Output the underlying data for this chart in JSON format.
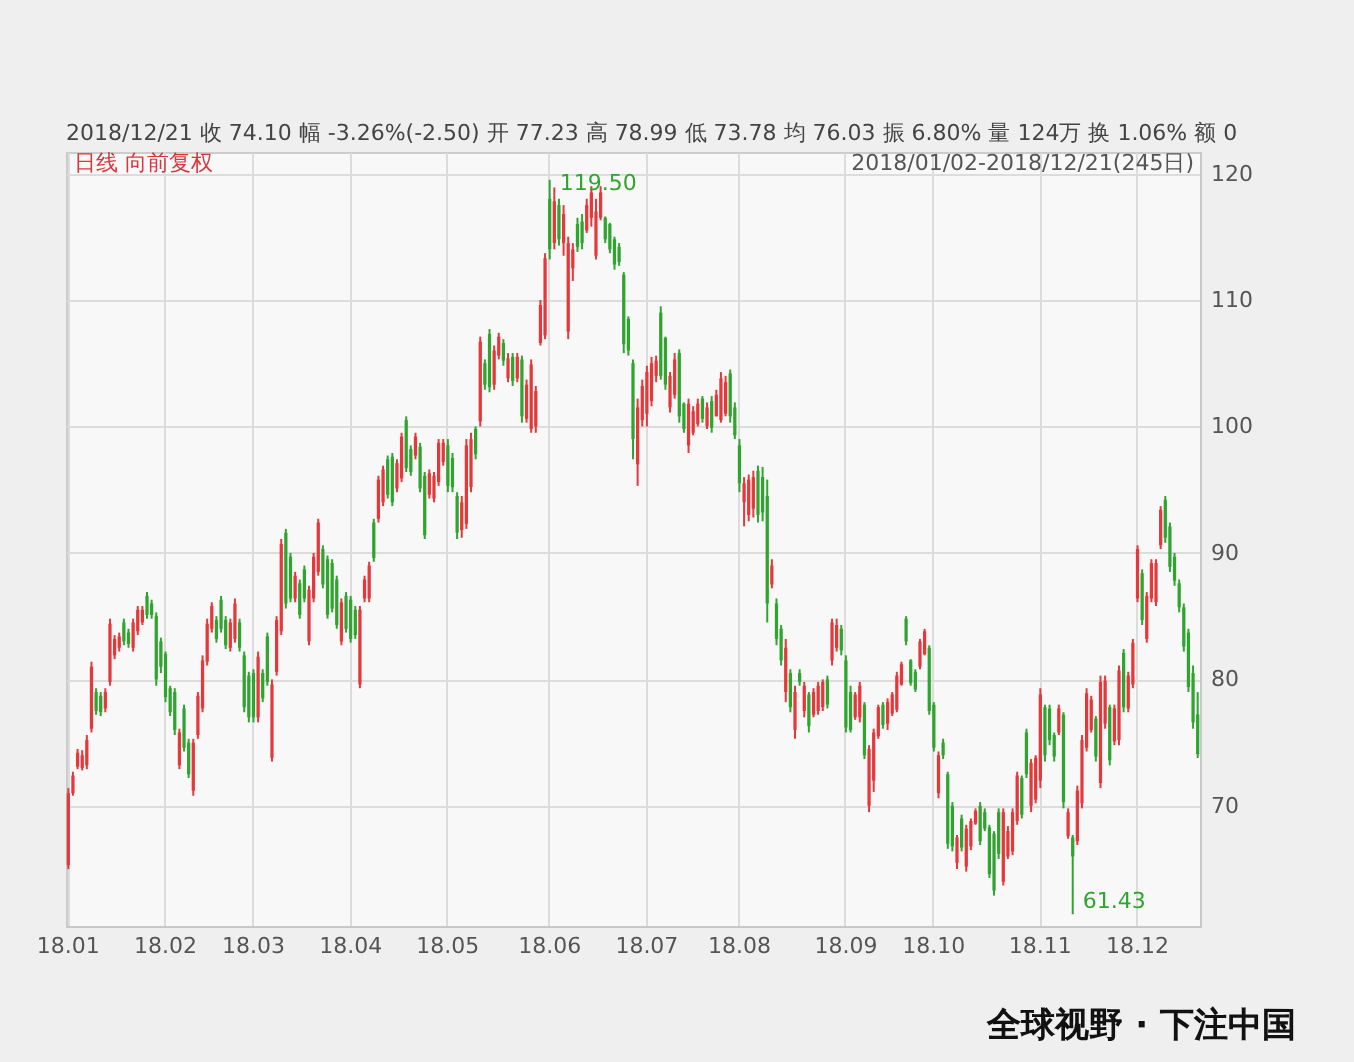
{
  "chart_data": {
    "type": "candlestick",
    "subtitle": "2018/12/21 收 74.10 幅 -3.26%(-2.50) 开 77.23 高 78.99 低 73.78 均 76.03 振 6.80% 量 124万 换 1.06% 额 0",
    "annotations": [
      "日线 向前复权",
      "2018/01/02-2018/12/21(245日)",
      "全球视野 · 下注中国",
      "61.43",
      {
        "text": "119.50",
        "y": 119.5
      }
    ],
    "categories": [
      "18.01",
      null,
      null,
      null,
      null,
      null,
      null,
      null,
      null,
      null,
      null,
      null,
      null,
      null,
      null,
      null,
      null,
      null,
      null,
      null,
      null,
      "18.02",
      null,
      null,
      null,
      null,
      null,
      null,
      null,
      null,
      null,
      null,
      null,
      null,
      null,
      null,
      null,
      null,
      null,
      null,
      "18.03",
      null,
      null,
      null,
      null,
      null,
      null,
      null,
      null,
      null,
      null,
      null,
      null,
      null,
      null,
      null,
      null,
      null,
      null,
      null,
      null,
      "18.04",
      null,
      null,
      null,
      null,
      null,
      null,
      null,
      null,
      null,
      null,
      null,
      null,
      null,
      null,
      null,
      null,
      null,
      null,
      null,
      null,
      "18.05",
      null,
      null,
      null,
      null,
      null,
      null,
      null,
      null,
      null,
      null,
      null,
      null,
      null,
      null,
      null,
      null,
      null,
      null,
      null,
      null,
      null,
      "18.06",
      null,
      null,
      null,
      null,
      null,
      null,
      null,
      null,
      null,
      null,
      null,
      null,
      null,
      null,
      null,
      null,
      null,
      null,
      null,
      null,
      "18.07",
      null,
      null,
      null,
      null,
      null,
      null,
      null,
      null,
      null,
      null,
      null,
      null,
      null,
      null,
      null,
      null,
      null,
      null,
      null,
      "18.08",
      null,
      null,
      null,
      null,
      null,
      null,
      null,
      null,
      null,
      null,
      null,
      null,
      null,
      null,
      null,
      null,
      null,
      null,
      null,
      null,
      null,
      null,
      "18.09",
      null,
      null,
      null,
      null,
      null,
      null,
      null,
      null,
      null,
      null,
      null,
      null,
      null,
      null,
      null,
      null,
      null,
      null,
      "18.10",
      null,
      null,
      null,
      null,
      null,
      null,
      null,
      null,
      null,
      null,
      null,
      null,
      null,
      null,
      null,
      null,
      null,
      null,
      null,
      null,
      null,
      null,
      "18.11",
      null,
      null,
      null,
      null,
      null,
      null,
      null,
      null,
      null,
      null,
      null,
      null,
      null,
      null,
      null,
      null,
      null,
      null,
      null,
      null,
      "18.12",
      null,
      null,
      null,
      null,
      null,
      null,
      null,
      null,
      null,
      null,
      null,
      null,
      null
    ],
    "ohlc": [
      [
        65.3,
        71.4,
        65.0,
        71.0
      ],
      [
        71.0,
        72.7,
        70.8,
        72.4
      ],
      [
        73.1,
        74.5,
        72.9,
        74.2
      ],
      [
        73.0,
        74.4,
        72.8,
        74.0
      ],
      [
        73.2,
        75.6,
        72.9,
        75.2
      ],
      [
        76.1,
        81.4,
        75.8,
        81.0
      ],
      [
        79.0,
        79.3,
        77.2,
        77.5
      ],
      [
        78.7,
        79.0,
        77.1,
        77.4
      ],
      [
        77.7,
        79.3,
        77.4,
        79.0
      ],
      [
        79.8,
        84.8,
        79.5,
        84.4
      ],
      [
        81.9,
        83.5,
        81.6,
        83.2
      ],
      [
        82.5,
        83.7,
        82.2,
        83.4
      ],
      [
        84.5,
        84.8,
        82.7,
        83.0
      ],
      [
        83.7,
        84.0,
        82.5,
        82.8
      ],
      [
        82.5,
        84.8,
        82.2,
        84.5
      ],
      [
        83.8,
        85.8,
        83.5,
        85.5
      ],
      [
        84.5,
        85.8,
        84.3,
        85.5
      ],
      [
        86.6,
        86.9,
        84.8,
        85.1
      ],
      [
        86.0,
        86.3,
        84.8,
        85.1
      ],
      [
        85.0,
        85.3,
        79.5,
        80.0
      ],
      [
        83.0,
        83.3,
        80.5,
        81.0
      ],
      [
        82.0,
        82.2,
        78.2,
        78.6
      ],
      [
        79.3,
        79.5,
        77.1,
        77.4
      ],
      [
        79.0,
        79.3,
        75.6,
        76.0
      ],
      [
        73.2,
        76.1,
        72.9,
        75.8
      ],
      [
        77.7,
        78.0,
        74.3,
        74.6
      ],
      [
        75.0,
        75.3,
        72.2,
        72.5
      ],
      [
        71.2,
        75.3,
        70.8,
        75.0
      ],
      [
        75.6,
        79.0,
        75.3,
        78.7
      ],
      [
        77.7,
        81.9,
        77.4,
        81.5
      ],
      [
        81.4,
        84.8,
        81.1,
        84.4
      ],
      [
        84.0,
        86.1,
        83.7,
        85.8
      ],
      [
        84.7,
        85.0,
        82.9,
        83.2
      ],
      [
        86.3,
        86.6,
        83.7,
        84.0
      ],
      [
        84.7,
        85.0,
        82.4,
        82.7
      ],
      [
        82.5,
        84.8,
        82.2,
        84.5
      ],
      [
        83.2,
        86.4,
        82.9,
        86.0
      ],
      [
        84.5,
        84.8,
        82.2,
        82.5
      ],
      [
        81.9,
        82.2,
        77.4,
        77.8
      ],
      [
        80.3,
        80.6,
        76.6,
        77.0
      ],
      [
        80.5,
        80.8,
        76.6,
        77.0
      ],
      [
        77.0,
        82.2,
        76.6,
        81.8
      ],
      [
        80.5,
        80.8,
        78.2,
        78.5
      ],
      [
        83.4,
        83.7,
        79.5,
        79.8
      ],
      [
        73.8,
        80.0,
        73.5,
        79.6
      ],
      [
        80.6,
        85.0,
        80.3,
        84.7
      ],
      [
        83.8,
        91.1,
        83.5,
        90.7
      ],
      [
        91.6,
        91.9,
        85.6,
        86.0
      ],
      [
        89.7,
        90.0,
        86.1,
        86.4
      ],
      [
        86.4,
        88.5,
        86.1,
        88.2
      ],
      [
        87.6,
        87.9,
        84.8,
        85.1
      ],
      [
        88.7,
        89.0,
        86.1,
        86.4
      ],
      [
        83.0,
        87.4,
        82.7,
        87.1
      ],
      [
        86.4,
        90.0,
        86.1,
        89.7
      ],
      [
        88.5,
        92.7,
        88.2,
        92.4
      ],
      [
        90.3,
        90.6,
        87.2,
        87.5
      ],
      [
        89.5,
        89.8,
        84.8,
        85.1
      ],
      [
        89.2,
        89.5,
        85.3,
        85.6
      ],
      [
        87.9,
        88.2,
        84.0,
        84.3
      ],
      [
        83.0,
        86.4,
        82.7,
        86.1
      ],
      [
        86.6,
        86.9,
        83.7,
        84.0
      ],
      [
        86.3,
        86.6,
        82.9,
        83.2
      ],
      [
        85.5,
        85.8,
        83.2,
        83.5
      ],
      [
        79.6,
        85.8,
        79.3,
        85.5
      ],
      [
        86.4,
        88.2,
        86.1,
        87.9
      ],
      [
        86.4,
        89.3,
        86.1,
        89.0
      ],
      [
        92.4,
        92.7,
        89.3,
        89.6
      ],
      [
        92.7,
        96.1,
        92.4,
        95.8
      ],
      [
        94.0,
        96.9,
        93.7,
        96.6
      ],
      [
        97.4,
        97.7,
        94.3,
        94.6
      ],
      [
        97.6,
        97.9,
        93.7,
        94.0
      ],
      [
        95.1,
        97.4,
        94.8,
        97.1
      ],
      [
        95.9,
        99.5,
        95.6,
        99.2
      ],
      [
        100.5,
        100.8,
        96.4,
        96.7
      ],
      [
        98.2,
        98.5,
        96.1,
        96.4
      ],
      [
        97.7,
        99.5,
        97.4,
        99.2
      ],
      [
        98.4,
        98.7,
        94.8,
        95.1
      ],
      [
        96.1,
        96.4,
        91.1,
        91.4
      ],
      [
        94.6,
        96.6,
        94.3,
        96.3
      ],
      [
        94.3,
        96.4,
        94.0,
        96.1
      ],
      [
        95.6,
        99.0,
        95.3,
        98.7
      ],
      [
        97.2,
        99.0,
        96.9,
        98.7
      ],
      [
        98.5,
        99.0,
        94.8,
        95.3
      ],
      [
        97.5,
        97.9,
        94.8,
        95.2
      ],
      [
        94.5,
        94.8,
        91.1,
        91.6
      ],
      [
        91.8,
        94.5,
        91.2,
        94.0
      ],
      [
        92.3,
        99.0,
        91.9,
        98.5
      ],
      [
        95.2,
        99.5,
        94.8,
        99.0
      ],
      [
        99.8,
        100.0,
        97.4,
        97.8
      ],
      [
        100.4,
        107.1,
        100.0,
        106.7
      ],
      [
        105.0,
        105.3,
        102.9,
        103.3
      ],
      [
        107.3,
        107.7,
        102.7,
        103.1
      ],
      [
        103.3,
        106.4,
        102.9,
        106.0
      ],
      [
        105.6,
        107.4,
        105.3,
        107.1
      ],
      [
        106.6,
        106.9,
        104.8,
        105.2
      ],
      [
        103.8,
        105.8,
        103.5,
        105.4
      ],
      [
        105.5,
        105.8,
        103.2,
        103.6
      ],
      [
        103.8,
        105.8,
        103.5,
        105.5
      ],
      [
        105.3,
        105.6,
        100.3,
        100.8
      ],
      [
        100.6,
        103.7,
        100.3,
        103.3
      ],
      [
        99.8,
        105.3,
        99.5,
        104.9
      ],
      [
        100.0,
        103.2,
        99.5,
        102.8
      ],
      [
        106.6,
        110.0,
        106.4,
        109.6
      ],
      [
        107.2,
        113.7,
        106.9,
        113.3
      ],
      [
        118.0,
        119.5,
        113.2,
        114.0
      ],
      [
        114.5,
        118.9,
        114.0,
        117.8
      ],
      [
        117.5,
        118.0,
        114.3,
        114.8
      ],
      [
        114.5,
        117.5,
        113.5,
        116.8
      ],
      [
        107.5,
        115.0,
        106.9,
        114.5
      ],
      [
        112.5,
        114.5,
        111.5,
        114.0
      ],
      [
        116.0,
        116.5,
        113.8,
        114.2
      ],
      [
        116.2,
        116.8,
        114.0,
        114.5
      ],
      [
        115.5,
        118.0,
        115.3,
        117.5
      ],
      [
        116.5,
        119.0,
        115.8,
        118.5
      ],
      [
        113.5,
        118.0,
        113.2,
        117.0
      ],
      [
        116.5,
        119.0,
        116.3,
        118.5
      ],
      [
        116.5,
        116.6,
        114.5,
        114.8
      ],
      [
        116.0,
        116.1,
        113.7,
        114.0
      ],
      [
        114.8,
        115.0,
        112.4,
        112.8
      ],
      [
        114.2,
        114.5,
        112.7,
        113.0
      ],
      [
        112.0,
        112.2,
        105.8,
        106.5
      ],
      [
        108.5,
        108.7,
        105.6,
        106.0
      ],
      [
        105.0,
        105.3,
        97.4,
        99.0
      ],
      [
        97.0,
        102.2,
        95.3,
        101.5
      ],
      [
        100.5,
        103.7,
        100.0,
        103.2
      ],
      [
        101.0,
        104.8,
        100.0,
        104.3
      ],
      [
        102.0,
        105.5,
        101.6,
        105.0
      ],
      [
        104.0,
        105.6,
        103.5,
        105.2
      ],
      [
        109.0,
        109.5,
        103.7,
        104.0
      ],
      [
        107.0,
        107.1,
        102.9,
        103.3
      ],
      [
        101.5,
        104.3,
        101.1,
        104.0
      ],
      [
        102.5,
        105.8,
        102.2,
        105.3
      ],
      [
        105.8,
        106.1,
        100.3,
        100.8
      ],
      [
        101.8,
        101.9,
        99.5,
        99.8
      ],
      [
        98.5,
        102.2,
        97.9,
        101.8
      ],
      [
        99.5,
        101.6,
        99.3,
        101.2
      ],
      [
        100.2,
        102.2,
        100.0,
        101.8
      ],
      [
        102.2,
        102.4,
        100.3,
        100.6
      ],
      [
        100.0,
        101.9,
        99.8,
        101.5
      ],
      [
        102.0,
        102.4,
        99.5,
        99.9
      ],
      [
        100.8,
        102.9,
        100.8,
        102.5
      ],
      [
        100.5,
        104.3,
        100.3,
        103.8
      ],
      [
        101.0,
        104.0,
        100.8,
        103.5
      ],
      [
        104.2,
        104.5,
        100.3,
        100.8
      ],
      [
        101.5,
        101.9,
        99.0,
        99.3
      ],
      [
        98.5,
        99.0,
        94.8,
        95.5
      ],
      [
        94.0,
        96.0,
        92.1,
        95.5
      ],
      [
        93.0,
        96.2,
        92.5,
        95.8
      ],
      [
        93.5,
        96.5,
        92.8,
        96.0
      ],
      [
        96.5,
        96.9,
        92.4,
        93.0
      ],
      [
        96.0,
        96.8,
        92.5,
        93.2
      ],
      [
        94.5,
        95.8,
        84.5,
        86.0
      ],
      [
        87.5,
        89.5,
        87.2,
        89.0
      ],
      [
        86.0,
        86.4,
        82.7,
        83.2
      ],
      [
        84.0,
        84.3,
        81.1,
        81.5
      ],
      [
        79.0,
        83.2,
        78.2,
        82.5
      ],
      [
        80.5,
        80.8,
        77.4,
        77.8
      ],
      [
        76.0,
        79.5,
        75.3,
        79.0
      ],
      [
        80.5,
        80.8,
        79.5,
        79.8
      ],
      [
        77.5,
        79.8,
        77.0,
        79.5
      ],
      [
        78.8,
        79.0,
        75.8,
        76.3
      ],
      [
        77.2,
        79.3,
        77.0,
        79.0
      ],
      [
        77.5,
        79.8,
        77.2,
        79.5
      ],
      [
        77.8,
        80.0,
        77.5,
        79.8
      ],
      [
        80.0,
        80.3,
        77.7,
        78.0
      ],
      [
        81.5,
        84.8,
        81.1,
        84.5
      ],
      [
        82.5,
        84.8,
        82.2,
        84.3
      ],
      [
        84.0,
        84.3,
        81.9,
        82.3
      ],
      [
        81.5,
        81.9,
        75.8,
        76.2
      ],
      [
        79.0,
        79.5,
        75.8,
        76.0
      ],
      [
        77.0,
        79.0,
        76.8,
        78.8
      ],
      [
        77.0,
        79.8,
        76.6,
        79.5
      ],
      [
        78.0,
        78.2,
        73.7,
        74.0
      ],
      [
        70.0,
        74.8,
        69.5,
        74.5
      ],
      [
        72.0,
        76.1,
        71.1,
        75.8
      ],
      [
        75.5,
        78.0,
        75.3,
        77.8
      ],
      [
        78.0,
        78.2,
        76.1,
        76.4
      ],
      [
        76.5,
        78.5,
        76.0,
        78.2
      ],
      [
        77.3,
        79.0,
        77.1,
        78.8
      ],
      [
        77.6,
        80.6,
        77.4,
        80.3
      ],
      [
        79.6,
        81.4,
        79.5,
        81.2
      ],
      [
        84.8,
        85.0,
        82.7,
        83.0
      ],
      [
        81.5,
        81.6,
        79.5,
        79.7
      ],
      [
        80.6,
        80.8,
        79.0,
        79.2
      ],
      [
        81.0,
        83.2,
        80.8,
        83.0
      ],
      [
        82.0,
        84.0,
        81.9,
        83.8
      ],
      [
        82.5,
        82.7,
        77.2,
        77.5
      ],
      [
        78.0,
        78.2,
        74.3,
        74.6
      ],
      [
        71.0,
        74.3,
        70.6,
        74.0
      ],
      [
        75.0,
        75.3,
        73.7,
        74.0
      ],
      [
        72.5,
        72.7,
        66.6,
        67.0
      ],
      [
        70.0,
        70.3,
        66.4,
        66.8
      ],
      [
        65.5,
        67.7,
        65.0,
        67.5
      ],
      [
        69.0,
        69.3,
        66.4,
        66.7
      ],
      [
        65.2,
        68.5,
        64.8,
        68.2
      ],
      [
        66.8,
        69.0,
        66.5,
        68.8
      ],
      [
        68.6,
        69.8,
        68.5,
        69.6
      ],
      [
        70.0,
        70.3,
        66.9,
        67.2
      ],
      [
        69.5,
        69.8,
        68.0,
        68.2
      ],
      [
        68.3,
        68.5,
        64.3,
        64.6
      ],
      [
        67.8,
        68.0,
        62.9,
        63.3
      ],
      [
        69.5,
        69.8,
        65.8,
        66.2
      ],
      [
        64.0,
        69.8,
        63.7,
        69.5
      ],
      [
        66.0,
        68.4,
        65.8,
        68.0
      ],
      [
        66.4,
        69.8,
        66.1,
        69.5
      ],
      [
        68.8,
        72.7,
        68.5,
        72.4
      ],
      [
        72.2,
        72.4,
        69.0,
        69.3
      ],
      [
        75.8,
        76.1,
        72.2,
        72.5
      ],
      [
        70.0,
        73.7,
        69.5,
        73.4
      ],
      [
        70.5,
        74.0,
        70.2,
        73.8
      ],
      [
        72.0,
        79.3,
        71.4,
        78.8
      ],
      [
        77.8,
        78.0,
        73.5,
        74.0
      ],
      [
        77.7,
        78.0,
        74.8,
        75.2
      ],
      [
        75.6,
        75.8,
        73.5,
        73.9
      ],
      [
        75.8,
        78.0,
        75.6,
        77.7
      ],
      [
        77.2,
        77.4,
        69.8,
        70.3
      ],
      [
        67.6,
        69.8,
        67.4,
        69.5
      ],
      [
        67.5,
        67.7,
        61.43,
        66.0
      ],
      [
        67.2,
        71.6,
        66.9,
        71.2
      ],
      [
        70.2,
        75.6,
        69.8,
        75.2
      ],
      [
        74.6,
        79.3,
        74.3,
        78.9
      ],
      [
        76.0,
        78.7,
        75.8,
        78.4
      ],
      [
        76.9,
        77.1,
        73.5,
        73.9
      ],
      [
        71.8,
        80.3,
        71.4,
        79.8
      ],
      [
        76.5,
        80.3,
        76.1,
        79.9
      ],
      [
        77.8,
        78.0,
        73.2,
        73.6
      ],
      [
        75.1,
        78.0,
        74.8,
        77.7
      ],
      [
        75.2,
        81.1,
        74.8,
        80.7
      ],
      [
        82.1,
        82.4,
        77.4,
        77.8
      ],
      [
        77.7,
        80.6,
        77.4,
        80.3
      ],
      [
        79.6,
        83.2,
        79.3,
        82.9
      ],
      [
        86.4,
        90.6,
        86.1,
        90.3
      ],
      [
        88.4,
        88.7,
        84.3,
        84.7
      ],
      [
        83.2,
        86.9,
        82.9,
        86.6
      ],
      [
        86.4,
        89.5,
        86.1,
        89.2
      ],
      [
        86.1,
        89.5,
        85.8,
        89.2
      ],
      [
        90.6,
        93.7,
        90.3,
        93.4
      ],
      [
        94.2,
        94.5,
        90.8,
        91.2
      ],
      [
        92.1,
        92.4,
        88.5,
        88.9
      ],
      [
        89.7,
        90.0,
        87.4,
        87.8
      ],
      [
        87.6,
        87.9,
        85.3,
        85.7
      ],
      [
        85.7,
        86.0,
        82.2,
        82.6
      ],
      [
        83.7,
        84.0,
        79.0,
        79.4
      ],
      [
        80.5,
        81.1,
        76.1,
        76.6
      ],
      [
        77.23,
        78.99,
        73.78,
        74.1
      ]
    ],
    "colors": [
      "#e5383b",
      "#e5383b",
      "#e5383b",
      "#e5383b",
      "#e5383b",
      "#e5383b",
      "#2fa52f",
      "#2fa52f",
      "#e5383b",
      "#e5383b",
      "#e5383b",
      "#e5383b",
      "#2fa52f",
      "#2fa52f",
      "#e5383b",
      "#e5383b",
      "#e5383b",
      "#2fa52f",
      "#2fa52f",
      "#2fa52f",
      "#2fa52f",
      "#2fa52f",
      "#2fa52f",
      "#2fa52f",
      "#e5383b",
      "#2fa52f",
      "#2fa52f",
      "#e5383b",
      "#e5383b",
      "#e5383b",
      "#e5383b",
      "#e5383b",
      "#2fa52f",
      "#2fa52f",
      "#2fa52f",
      "#e5383b",
      "#e5383b",
      "#2fa52f",
      "#2fa52f",
      "#2fa52f",
      "#2fa52f",
      "#e5383b",
      "#2fa52f",
      "#2fa52f",
      "#e5383b",
      "#e5383b",
      "#e5383b",
      "#2fa52f",
      "#2fa52f",
      "#e5383b",
      "#2fa52f",
      "#2fa52f",
      "#e5383b",
      "#e5383b",
      "#e5383b",
      "#2fa52f",
      "#2fa52f",
      "#2fa52f",
      "#2fa52f",
      "#e5383b",
      "#2fa52f",
      "#2fa52f",
      "#2fa52f",
      "#e5383b",
      "#e5383b",
      "#e5383b",
      "#2fa52f",
      "#e5383b",
      "#e5383b",
      "#2fa52f",
      "#2fa52f",
      "#e5383b",
      "#e5383b",
      "#2fa52f",
      "#2fa52f",
      "#e5383b",
      "#2fa52f",
      "#2fa52f",
      "#e5383b",
      "#e5383b",
      "#e5383b",
      "#e5383b",
      "#2fa52f",
      "#2fa52f",
      "#2fa52f",
      "#e5383b",
      "#e5383b",
      "#e5383b",
      "#2fa52f",
      "#e5383b",
      "#2fa52f",
      "#2fa52f",
      "#e5383b",
      "#e5383b",
      "#2fa52f",
      "#e5383b",
      "#2fa52f",
      "#e5383b",
      "#2fa52f",
      "#e5383b",
      "#e5383b",
      "#e5383b",
      "#e5383b",
      "#e5383b",
      "#2fa52f",
      "#e5383b",
      "#2fa52f",
      "#e5383b",
      "#e5383b",
      "#e5383b",
      "#2fa52f",
      "#2fa52f",
      "#e5383b",
      "#e5383b",
      "#e5383b",
      "#e5383b",
      "#2fa52f",
      "#2fa52f",
      "#2fa52f",
      "#2fa52f",
      "#2fa52f",
      "#2fa52f",
      "#2fa52f",
      "#e5383b",
      "#e5383b",
      "#e5383b",
      "#e5383b",
      "#e5383b",
      "#2fa52f",
      "#2fa52f",
      "#e5383b",
      "#e5383b",
      "#2fa52f",
      "#2fa52f",
      "#e5383b",
      "#e5383b",
      "#e5383b",
      "#2fa52f",
      "#e5383b",
      "#2fa52f",
      "#e5383b",
      "#e5383b",
      "#e5383b",
      "#2fa52f",
      "#2fa52f",
      "#2fa52f",
      "#e5383b",
      "#e5383b",
      "#e5383b",
      "#2fa52f",
      "#2fa52f",
      "#2fa52f",
      "#e5383b",
      "#2fa52f",
      "#2fa52f",
      "#e5383b",
      "#2fa52f",
      "#e5383b",
      "#2fa52f",
      "#e5383b",
      "#2fa52f",
      "#e5383b",
      "#e5383b",
      "#e5383b",
      "#2fa52f",
      "#e5383b",
      "#e5383b",
      "#2fa52f",
      "#2fa52f",
      "#2fa52f",
      "#e5383b",
      "#e5383b",
      "#2fa52f",
      "#e5383b",
      "#e5383b",
      "#e5383b",
      "#2fa52f",
      "#e5383b",
      "#e5383b",
      "#e5383b",
      "#e5383b",
      "#2fa52f",
      "#2fa52f",
      "#2fa52f",
      "#e5383b",
      "#e5383b",
      "#2fa52f",
      "#2fa52f",
      "#e5383b",
      "#2fa52f",
      "#2fa52f",
      "#2fa52f",
      "#e5383b",
      "#2fa52f",
      "#e5383b",
      "#e5383b",
      "#e5383b",
      "#2fa52f",
      "#2fa52f",
      "#2fa52f",
      "#2fa52f",
      "#2fa52f",
      "#e5383b",
      "#e5383b",
      "#e5383b",
      "#e5383b",
      "#2fa52f",
      "#2fa52f",
      "#e5383b",
      "#e5383b",
      "#e5383b",
      "#2fa52f",
      "#2fa52f",
      "#2fa52f",
      "#e5383b",
      "#2fa52f",
      "#e5383b",
      "#2fa52f",
      "#e5383b",
      "#e5383b",
      "#e5383b",
      "#e5383b",
      "#2fa52f",
      "#e5383b",
      "#e5383b",
      "#2fa52f",
      "#e5383b",
      "#e5383b",
      "#2fa52f",
      "#e5383b",
      "#e5383b",
      "#e5383b",
      "#2fa52f",
      "#e5383b",
      "#e5383b",
      "#e5383b",
      "#e5383b",
      "#2fa52f",
      "#2fa52f",
      "#2fa52f",
      "#2fa52f",
      "#2fa52f",
      "#2fa52f",
      "#2fa52f",
      "#2fa52f"
    ],
    "ylim": [
      60.5,
      121.7
    ],
    "yticks": [
      70,
      80,
      90,
      100,
      110,
      120
    ],
    "grid": true
  }
}
